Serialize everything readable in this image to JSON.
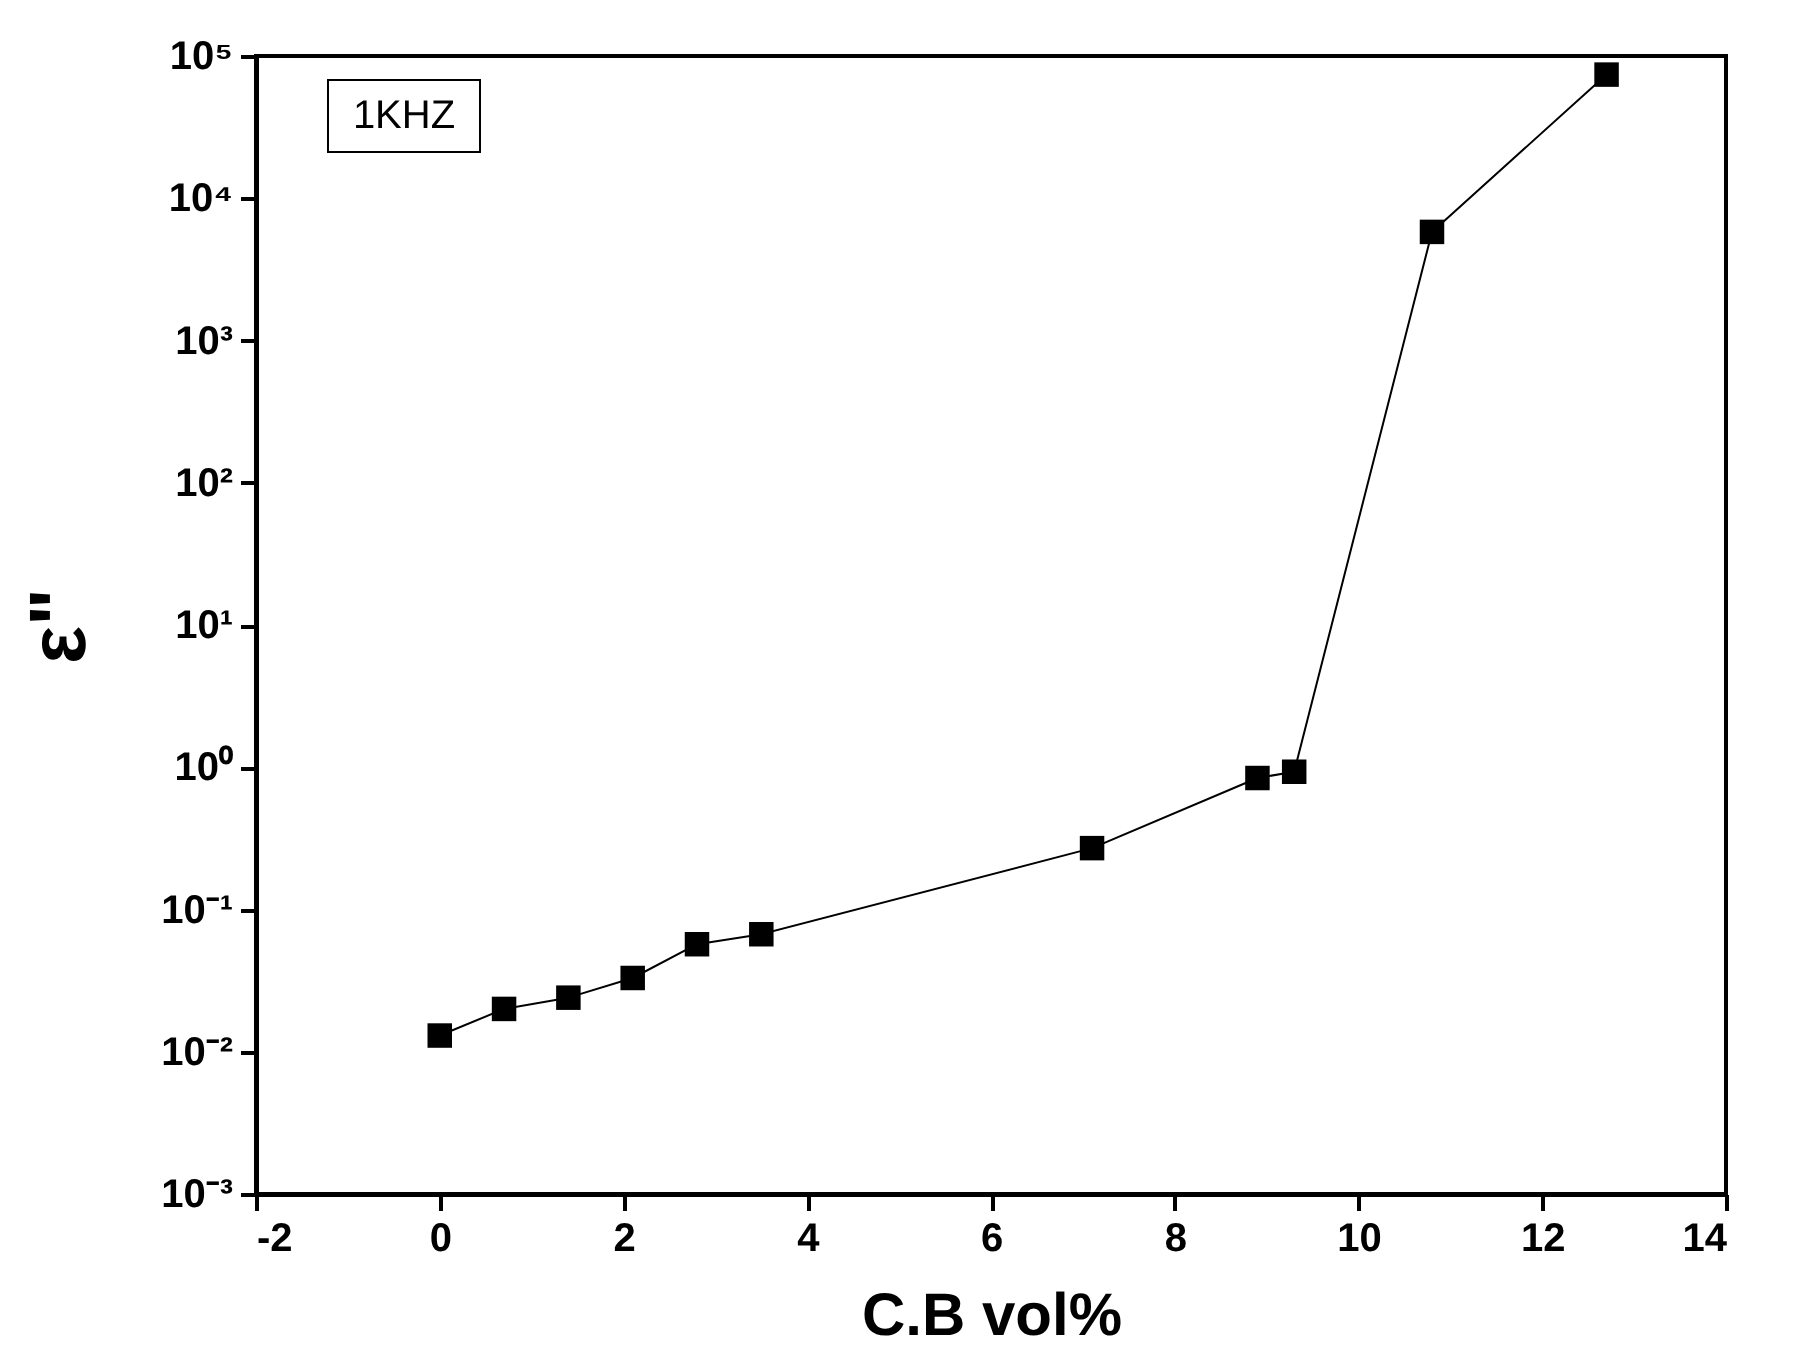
{
  "chart_data": {
    "type": "line",
    "xlabel": "C.B vol%",
    "ylabel": "ε\"",
    "annotations": [
      "1KHZ"
    ],
    "x": [
      0,
      0.7,
      1.4,
      2.1,
      2.8,
      3.5,
      7.1,
      8.9,
      9.3,
      10.8,
      12.7
    ],
    "series": [
      {
        "color": "#000000",
        "values": [
          0.013,
          0.02,
          0.024,
          0.033,
          0.057,
          0.067,
          0.27,
          0.84,
          0.93,
          5800,
          74000
        ]
      }
    ],
    "log": "y",
    "marker": "square",
    "line_style": "solid",
    "grid": false,
    "legend": false,
    "xlim": [
      -2,
      14
    ],
    "xticks": [
      -2,
      0,
      2,
      4,
      6,
      8,
      10,
      12,
      14
    ],
    "ylim": [
      0.001,
      100000
    ],
    "yticks": [
      {
        "value": 0.001,
        "label": "10⁻³"
      },
      {
        "value": 0.01,
        "label": "10⁻²"
      },
      {
        "value": 0.1,
        "label": "10⁻¹"
      },
      {
        "value": 1,
        "label": "10⁰"
      },
      {
        "value": 10,
        "label": "10¹"
      },
      {
        "value": 100,
        "label": "10²"
      },
      {
        "value": 1000,
        "label": "10³"
      },
      {
        "value": 10000,
        "label": "10⁴"
      },
      {
        "value": 100000,
        "label": "10⁵"
      }
    ]
  }
}
